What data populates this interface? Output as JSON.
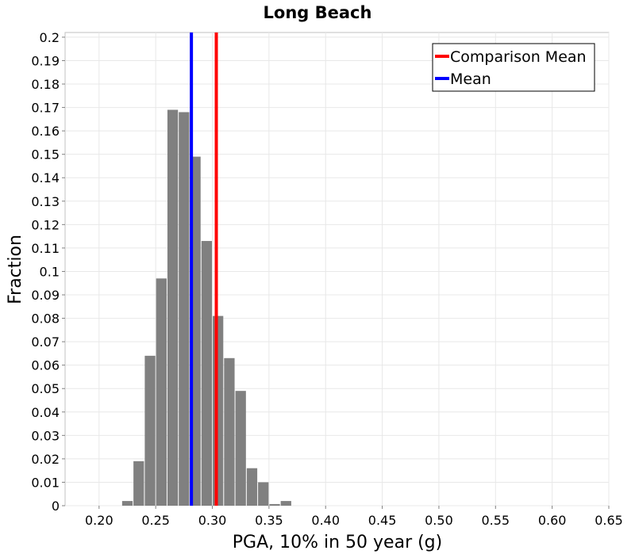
{
  "chart_data": {
    "type": "bar",
    "title": "Long Beach",
    "xlabel": "PGA, 10% in 50 year (g)",
    "ylabel": "Fraction",
    "xlim": [
      0.17,
      0.65
    ],
    "ylim": [
      0,
      0.202
    ],
    "grid": true,
    "legend_position": "top-right",
    "bin_width": 0.01,
    "bar_color": "#808080",
    "bins": [
      {
        "x0": 0.22,
        "value": 0.002
      },
      {
        "x0": 0.23,
        "value": 0.019
      },
      {
        "x0": 0.24,
        "value": 0.064
      },
      {
        "x0": 0.25,
        "value": 0.097
      },
      {
        "x0": 0.26,
        "value": 0.169
      },
      {
        "x0": 0.27,
        "value": 0.168
      },
      {
        "x0": 0.28,
        "value": 0.149
      },
      {
        "x0": 0.29,
        "value": 0.113
      },
      {
        "x0": 0.3,
        "value": 0.081
      },
      {
        "x0": 0.31,
        "value": 0.063
      },
      {
        "x0": 0.32,
        "value": 0.049
      },
      {
        "x0": 0.33,
        "value": 0.016
      },
      {
        "x0": 0.34,
        "value": 0.01
      },
      {
        "x0": 0.35,
        "value": 0.0007
      },
      {
        "x0": 0.36,
        "value": 0.002
      }
    ],
    "vertical_lines": [
      {
        "name": "Comparison Mean",
        "x": 0.3035,
        "color": "#ff0000"
      },
      {
        "name": "Mean",
        "x": 0.2815,
        "color": "#0000ff"
      }
    ],
    "x_ticks": [
      "0.20",
      "0.25",
      "0.30",
      "0.35",
      "0.40",
      "0.45",
      "0.50",
      "0.55",
      "0.60",
      "0.65"
    ],
    "y_ticks": [
      "0",
      "0.01",
      "0.02",
      "0.03",
      "0.04",
      "0.05",
      "0.06",
      "0.07",
      "0.08",
      "0.09",
      "0.1",
      "0.11",
      "0.12",
      "0.13",
      "0.14",
      "0.15",
      "0.16",
      "0.17",
      "0.18",
      "0.19",
      "0.2"
    ]
  }
}
